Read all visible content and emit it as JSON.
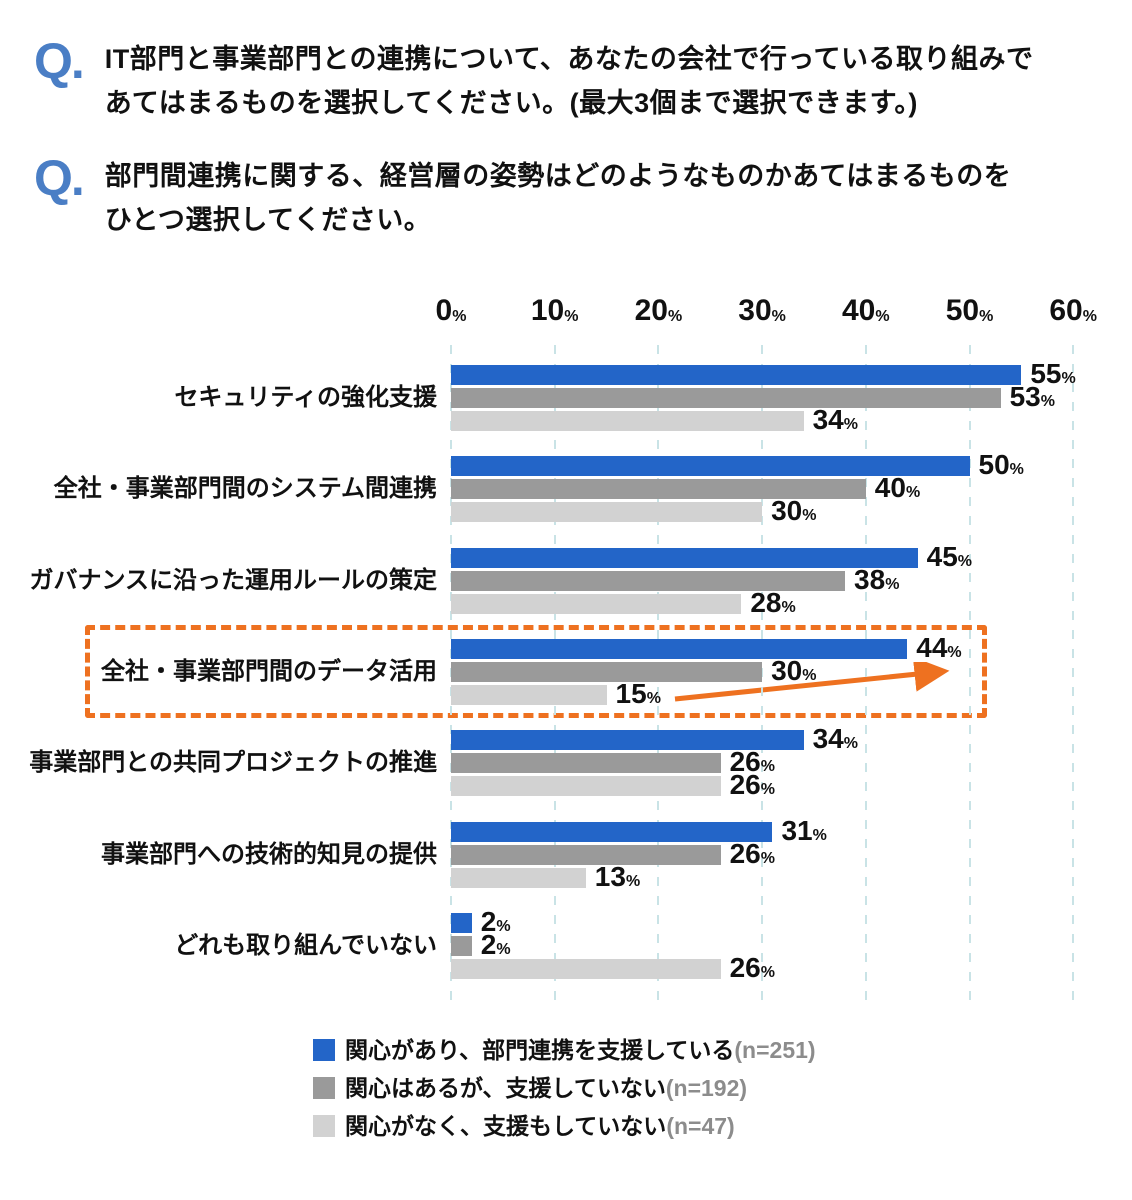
{
  "questions": [
    {
      "marker": "Q.",
      "text": "IT部門と事業部門との連携について、あなたの会社で行っている取り組みで\nあてはまるものを選択してください。(最大3個まで選択できます。)"
    },
    {
      "marker": "Q.",
      "text": "部門間連携に関する、経営層の姿勢はどのようなものかあてはまるものを\nひとつ選択してください。"
    }
  ],
  "chart_data": {
    "type": "bar",
    "orientation": "horizontal",
    "x_axis": {
      "ticks": [
        0,
        10,
        20,
        30,
        40,
        50,
        60
      ],
      "unit": "%",
      "range": [
        0,
        60
      ],
      "grid": "dashed-vertical"
    },
    "value_suffix": "%",
    "categories": [
      "セキュリティの強化支援",
      "全社・事業部門間のシステム間連携",
      "ガバナンスに沿った運用ルールの策定",
      "全社・事業部門間のデータ活用",
      "事業部門との共同プロジェクトの推進",
      "事業部門への技術的知見の提供",
      "どれも取り組んでいない"
    ],
    "series": [
      {
        "name": "関心があり、部門連携を支援している",
        "sample": "(n=251)",
        "color": "#2365C8",
        "values": [
          55,
          50,
          45,
          44,
          34,
          31,
          2
        ]
      },
      {
        "name": "関心はあるが、支援していない",
        "sample": "(n=192)",
        "color": "#9A9A9A",
        "values": [
          53,
          40,
          38,
          30,
          26,
          26,
          2
        ]
      },
      {
        "name": "関心がなく、支援もしていない",
        "sample": "(n=47)",
        "color": "#D2D2D2",
        "values": [
          34,
          30,
          28,
          15,
          26,
          13,
          26
        ]
      }
    ],
    "highlight": {
      "category": "全社・事業部門間のデータ活用",
      "category_index": 3,
      "style": "dashed-box-with-arrow"
    },
    "legend_position": "bottom"
  },
  "colors": {
    "question_marker": "#4A7EC5",
    "text": "#111111",
    "grid": "#C9E3E6",
    "highlight": "#EE7120",
    "sample_text": "#8C8C8C",
    "background": "#FFFFFF"
  }
}
